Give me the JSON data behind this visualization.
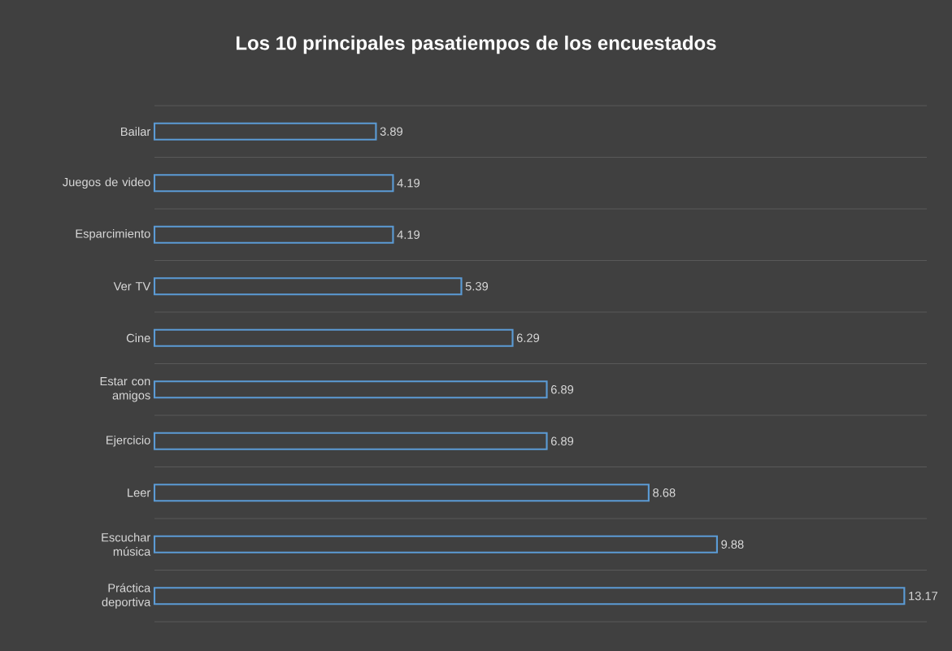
{
  "chart_data": {
    "type": "bar",
    "orientation": "horizontal",
    "title": "Los 10 principales pasatiempos de los encuestados",
    "categories": [
      "Bailar",
      "Juegos de video",
      "Esparcimiento",
      "Ver TV",
      "Cine",
      "Estar con amigos",
      "Ejercicio",
      "Leer",
      "Escuchar música",
      "Práctica deportiva"
    ],
    "values": [
      3.89,
      4.19,
      4.19,
      5.39,
      6.29,
      6.89,
      6.89,
      8.68,
      9.88,
      13.17
    ],
    "color": "#5b9bd5",
    "data_labels": true,
    "grid": "y",
    "tick_labels": "y"
  }
}
